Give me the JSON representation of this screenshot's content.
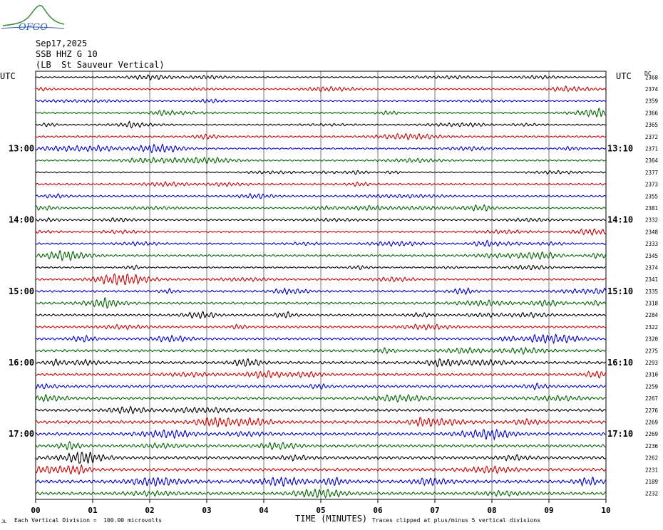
{
  "logo": {
    "text": "OFGO",
    "color": "#3a8a3a",
    "text_color": "#3060b0"
  },
  "header": {
    "date": "Sep17,2025",
    "station": "SSB HHZ G 10",
    "location": "(LB  St Sauveur Vertical)"
  },
  "labels": {
    "utc_left": "UTC",
    "utc_right": "UTC",
    "dc": "DC",
    "xlabel": "TIME (MINUTES)",
    "scale_note": "Each Vertical Division =  100.00 microvolts",
    "clip_note": "Traces clipped at plus/minus 5 vertical divisions",
    "corner_mark": "JL"
  },
  "colors": {
    "trace_cycle": [
      "#000000",
      "#cc0000",
      "#0000cc",
      "#006600"
    ],
    "grid": "#000000"
  },
  "chart_data": {
    "type": "line",
    "title": "",
    "xlabel": "TIME (MINUTES)",
    "ylabel": "",
    "xlim": [
      0,
      10
    ],
    "x_ticks": [
      "00",
      "01",
      "02",
      "03",
      "04",
      "05",
      "06",
      "07",
      "08",
      "09",
      "10"
    ],
    "left_time_labels": [
      {
        "row": 6,
        "label": "13:00"
      },
      {
        "row": 12,
        "label": "14:00"
      },
      {
        "row": 18,
        "label": "15:00"
      },
      {
        "row": 24,
        "label": "16:00"
      },
      {
        "row": 30,
        "label": "17:00"
      }
    ],
    "right_time_labels": [
      {
        "row": 6,
        "label": "13:10"
      },
      {
        "row": 12,
        "label": "14:10"
      },
      {
        "row": 18,
        "label": "15:10"
      },
      {
        "row": 24,
        "label": "16:10"
      },
      {
        "row": 30,
        "label": "17:10"
      }
    ],
    "dc_values": [
      "2368",
      "2374",
      "2359",
      "2366",
      "2365",
      "2372",
      "2371",
      "2364",
      "2377",
      "2373",
      "2355",
      "2381",
      "2332",
      "2348",
      "2333",
      "2345",
      "2374",
      "2341",
      "2335",
      "2318",
      "2284",
      "2322",
      "2320",
      "2275",
      "2293",
      "2310",
      "2259",
      "2267",
      "2276",
      "2269",
      "2269",
      "2236",
      "2262",
      "2231",
      "2189",
      "2232"
    ],
    "amplitudes": [
      0.8,
      1.0,
      0.9,
      1.1,
      0.9,
      1.2,
      1.0,
      1.0,
      0.8,
      1.2,
      1.1,
      1.0,
      1.1,
      1.0,
      1.1,
      1.3,
      1.0,
      1.2,
      1.3,
      1.5,
      1.4,
      1.3,
      1.4,
      1.5,
      1.7,
      1.6,
      1.7,
      1.6,
      1.6,
      1.9,
      1.8,
      1.7,
      1.9,
      1.8,
      2.0,
      1.8
    ]
  }
}
